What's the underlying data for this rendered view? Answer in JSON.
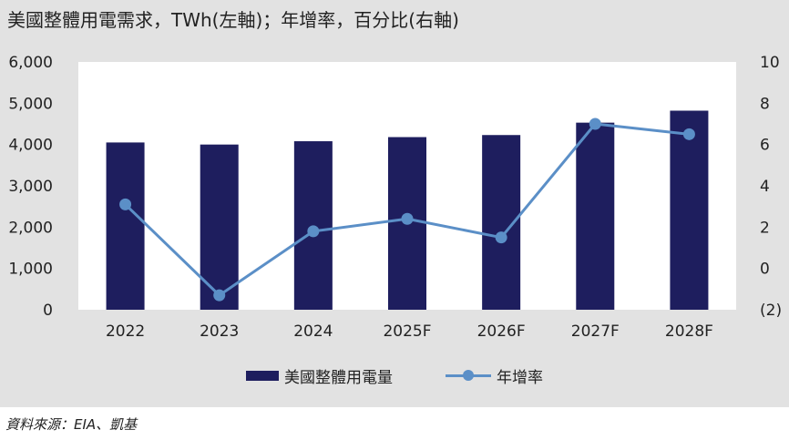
{
  "title": "美國整體用電需求，TWh(左軸)；年增率，百分比(右軸)",
  "source": "資料來源：EIA、凱基",
  "colors": {
    "bar": "#1e1e5e",
    "line": "#5b8fc7"
  },
  "chart_data": {
    "type": "bar",
    "categories": [
      "2022",
      "2023",
      "2024",
      "2025F",
      "2026F",
      "2027F",
      "2028F"
    ],
    "series": [
      {
        "name": "美國整體用電量",
        "type": "bar",
        "axis": "left",
        "values": [
          4050,
          4000,
          4080,
          4180,
          4230,
          4530,
          4820
        ]
      },
      {
        "name": "年增率",
        "type": "line",
        "axis": "right",
        "values": [
          3.1,
          -1.3,
          1.8,
          2.4,
          1.5,
          7.0,
          6.5
        ]
      }
    ],
    "y_left": {
      "range": [
        0,
        6000
      ],
      "ticks": [
        "6,000",
        "5,000",
        "4,000",
        "3,000",
        "2,000",
        "1,000",
        "0"
      ]
    },
    "y_right": {
      "range": [
        -2,
        10
      ],
      "ticks": [
        "10",
        "8",
        "6",
        "4",
        "2",
        "0",
        "(2)"
      ]
    },
    "legend_position": "bottom",
    "grid": false
  }
}
